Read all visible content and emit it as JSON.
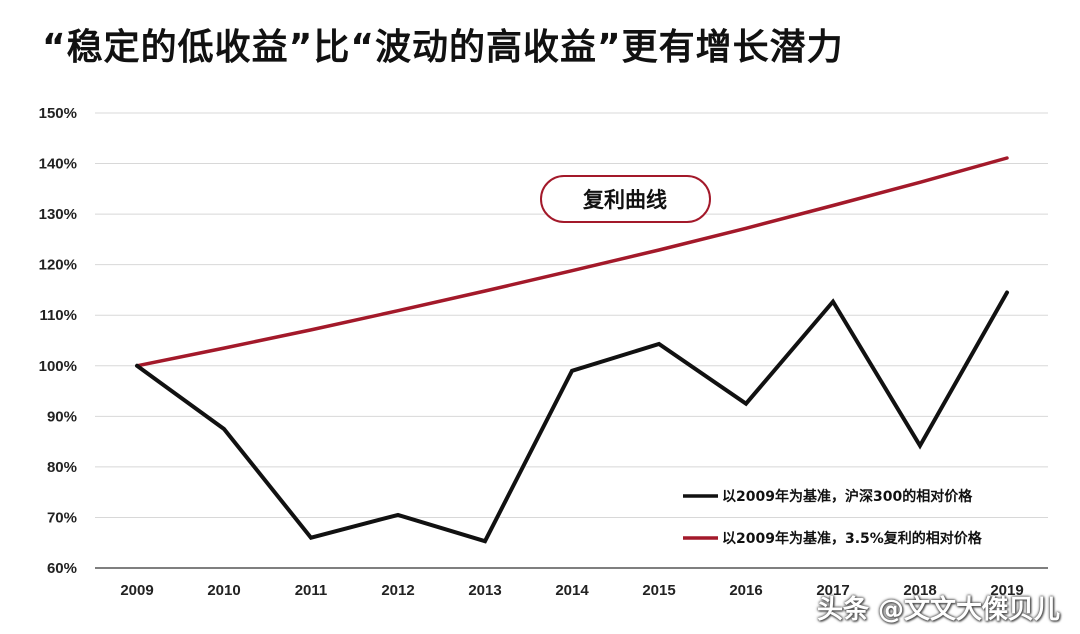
{
  "page": {
    "title": "“稳定的低收益”比“波动的高收益”更有增长潜力",
    "watermark": "头条 @文文大傑贝儿"
  },
  "chart_data": {
    "type": "line",
    "title": "“稳定的低收益”比“波动的高收益”更有增长潜力",
    "xlabel": "",
    "ylabel": "",
    "x": [
      "2009",
      "2010",
      "2011",
      "2012",
      "2013",
      "2014",
      "2015",
      "2016",
      "2017",
      "2018",
      "2019"
    ],
    "y_ticks": [
      "150%",
      "140%",
      "130%",
      "120%",
      "110%",
      "100%",
      "90%",
      "80%",
      "70%",
      "60%"
    ],
    "ylim": [
      60,
      150
    ],
    "grid": true,
    "legend_position": "bottom-right",
    "annotation": "复利曲线",
    "colors": {
      "series_1": "#111111",
      "series_2": "#a3192a"
    },
    "series": [
      {
        "name": "以2009年为基准，沪深300的相对价格",
        "values": [
          100,
          87.5,
          66,
          70.5,
          65.3,
          99,
          104.3,
          92.5,
          112.7,
          84.2,
          114.5
        ]
      },
      {
        "name": "以2009年为基准，3.5%复利的相对价格",
        "values": [
          100,
          103.5,
          107.1,
          110.9,
          114.8,
          118.8,
          122.9,
          127.2,
          131.7,
          136.3,
          141.1
        ]
      }
    ]
  }
}
